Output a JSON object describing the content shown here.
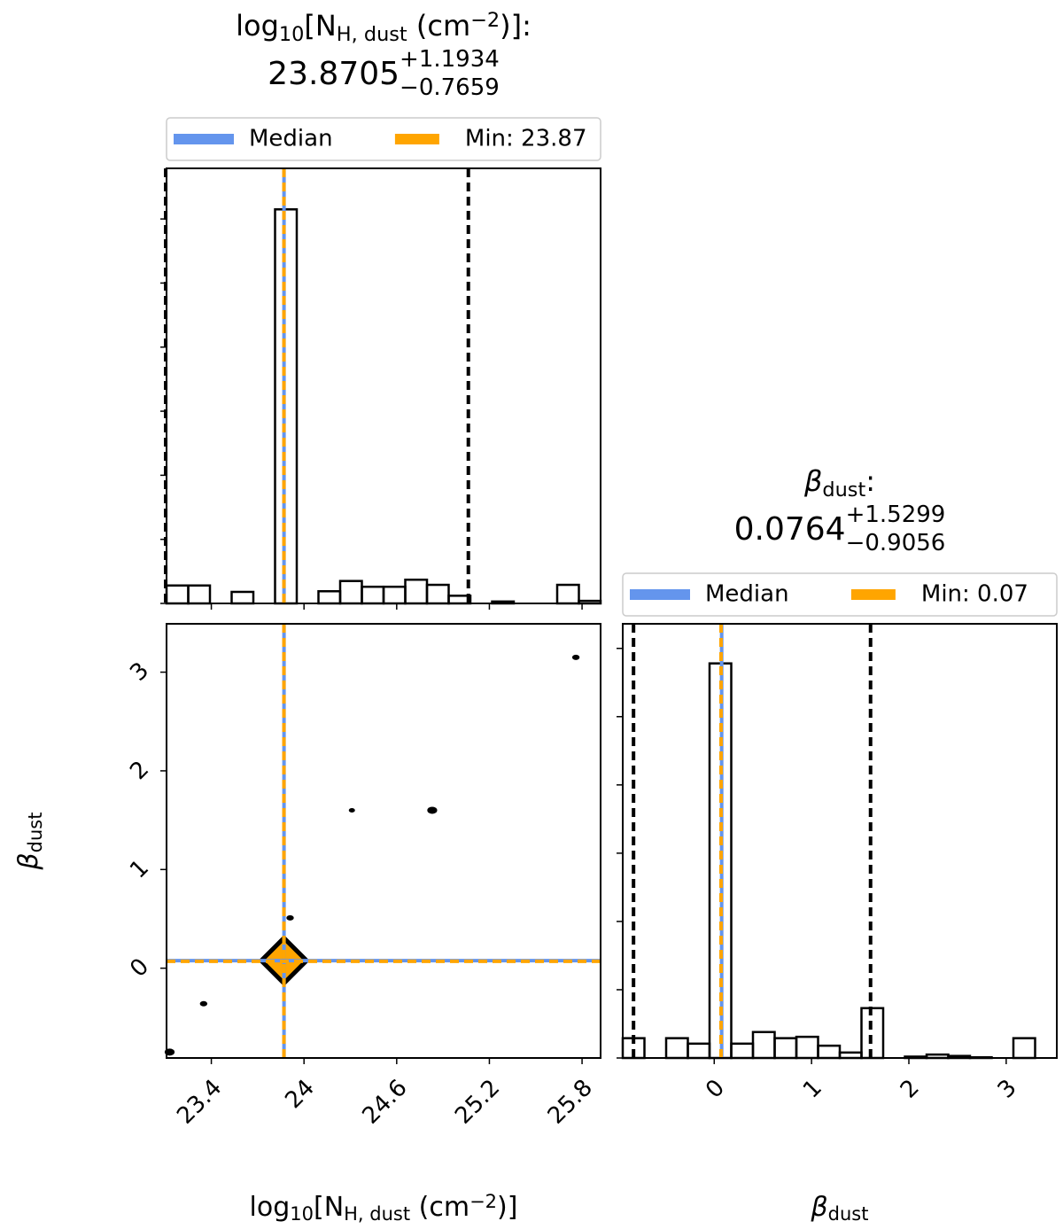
{
  "chart_data": [
    {
      "type": "histogram",
      "title": [
        {
          "text": "log"
        },
        {
          "text": "10",
          "script": "sub"
        },
        {
          "text": "[N"
        },
        {
          "text": "H, dust",
          "script": "sub"
        },
        {
          "text": " (cm"
        },
        {
          "text": "−2",
          "script": "sup"
        },
        {
          "text": ")]:"
        }
      ],
      "median": 23.8705,
      "upper": {
        "value": 1.1934,
        "label": "+1.1934"
      },
      "lower": {
        "value": 0.7659,
        "label": "−0.7659"
      },
      "min": 23.87,
      "legend": [
        {
          "name": "Median",
          "color": "#6495ed"
        },
        {
          "name": "Min: 23.87",
          "color": "#ffa500"
        }
      ],
      "bins": [
        23.11,
        23.2505,
        23.391,
        23.5315,
        23.672,
        23.8125,
        23.953,
        24.0935,
        24.234,
        24.3745,
        24.515,
        24.6555,
        24.796,
        24.9365,
        25.077,
        25.2175,
        25.358,
        25.4985,
        25.639,
        25.7795,
        25.92
      ],
      "counts": [
        0.28,
        0.28,
        0,
        0.18,
        0,
        6.15,
        0,
        0.19,
        0.35,
        0.26,
        0.26,
        0.37,
        0.29,
        0.12,
        0,
        0.03,
        0,
        0,
        0.29,
        0.04
      ],
      "xlim": [
        23.11,
        25.92
      ],
      "xticks": [
        23.4,
        24.0,
        24.6,
        25.2,
        25.8
      ],
      "ylim": [
        0,
        6.79
      ],
      "yticks": [
        0,
        1,
        2,
        3,
        4,
        5,
        6
      ]
    },
    {
      "type": "histogram",
      "title": [
        {
          "text": "β",
          "style": "italic"
        },
        {
          "text": "dust",
          "script": "sub"
        },
        {
          "text": ":"
        }
      ],
      "median": 0.0764,
      "upper": {
        "value": 1.5299,
        "label": "+1.5299"
      },
      "lower": {
        "value": 0.9056,
        "label": "−0.9056"
      },
      "min": 0.07,
      "legend": [
        {
          "name": "Median",
          "color": "#6495ed"
        },
        {
          "name": "Min: 0.07",
          "color": "#ffa500"
        }
      ],
      "bins": [
        -0.94,
        -0.717,
        -0.494,
        -0.271,
        -0.048,
        0.175,
        0.398,
        0.621,
        0.844,
        1.067,
        1.29,
        1.513,
        1.736,
        1.959,
        2.182,
        2.405,
        2.628,
        2.851,
        3.074,
        3.297,
        3.52
      ],
      "counts": [
        0.29,
        0,
        0.29,
        0.21,
        5.78,
        0.21,
        0.38,
        0.29,
        0.31,
        0.18,
        0.08,
        0.73,
        0,
        0.02,
        0.05,
        0.03,
        0.01,
        0,
        0.29,
        0
      ],
      "xlim": [
        -0.94,
        3.52
      ],
      "xticks": [
        0,
        1,
        2,
        3
      ],
      "xlabel": [
        {
          "text": "β",
          "style": "italic"
        },
        {
          "text": "dust",
          "script": "sub"
        }
      ],
      "ylim": [
        0,
        6.36
      ],
      "yticks": [
        0,
        1,
        2,
        3,
        4,
        5,
        6
      ]
    },
    {
      "type": "scatter",
      "x": [
        23.13,
        23.35,
        23.87,
        23.91,
        24.31,
        24.83,
        25.76
      ],
      "y": [
        -0.85,
        -0.36,
        0.0764,
        0.51,
        1.6,
        1.6,
        3.15
      ],
      "sizes": [
        4,
        3,
        16,
        3,
        2.5,
        4,
        3
      ],
      "xlim": [
        23.11,
        25.92
      ],
      "xticks": [
        23.4,
        24.0,
        24.6,
        25.2,
        25.8
      ],
      "ylim": [
        -0.91,
        3.49
      ],
      "yticks": [
        0,
        1,
        2,
        3
      ],
      "xlabel": [
        {
          "text": "log"
        },
        {
          "text": "10",
          "script": "sub"
        },
        {
          "text": "[N"
        },
        {
          "text": "H, dust",
          "script": "sub"
        },
        {
          "text": " (cm"
        },
        {
          "text": "−2",
          "script": "sup"
        },
        {
          "text": ")]"
        }
      ],
      "ylabel": [
        {
          "text": "β",
          "style": "italic"
        },
        {
          "text": "dust",
          "script": "sub"
        }
      ]
    }
  ]
}
